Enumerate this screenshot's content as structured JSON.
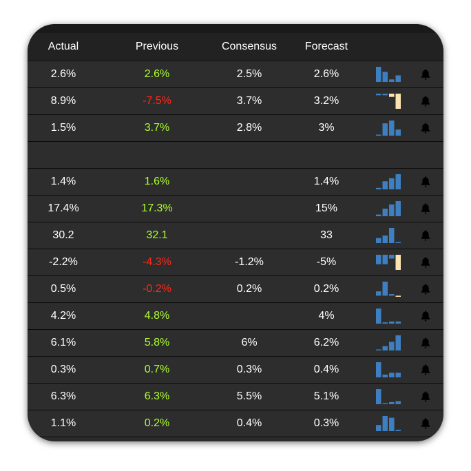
{
  "colors": {
    "up": "#adff2f",
    "down": "#ff2a1a",
    "bar": "#3d7fc1",
    "forecast_bar": "#fbe3b2"
  },
  "header": {
    "actual": "Actual",
    "previous": "Previous",
    "consensus": "Consensus",
    "forecast": "Forecast"
  },
  "rows": [
    {
      "actual": "2.6%",
      "previous": "2.6%",
      "prev_trend": "up",
      "consensus": "2.5%",
      "forecast": "2.6%",
      "spark": [
        [
          3,
          "b"
        ],
        [
          2,
          "b"
        ],
        [
          0.5,
          "b"
        ],
        [
          1.3,
          "b"
        ]
      ]
    },
    {
      "actual": "8.9%",
      "previous": "-7.5%",
      "prev_trend": "down",
      "consensus": "3.7%",
      "forecast": "3.2%",
      "spark": [
        [
          -0.3,
          "b"
        ],
        [
          -0.3,
          "b"
        ],
        [
          -0.6,
          "f"
        ],
        [
          -2.8,
          "f"
        ]
      ]
    },
    {
      "actual": "1.5%",
      "previous": "3.7%",
      "prev_trend": "up",
      "consensus": "2.8%",
      "forecast": "3%",
      "spark": [
        [
          0.2,
          "b"
        ],
        [
          2.6,
          "b"
        ],
        [
          3.2,
          "b"
        ],
        [
          1.3,
          "b"
        ]
      ]
    },
    {
      "empty": true
    },
    {
      "actual": "1.4%",
      "previous": "1.6%",
      "prev_trend": "up",
      "consensus": "",
      "forecast": "1.4%",
      "spark": [
        [
          0.3,
          "b"
        ],
        [
          1.6,
          "b"
        ],
        [
          2.2,
          "b"
        ],
        [
          3,
          "b"
        ]
      ]
    },
    {
      "actual": "17.4%",
      "previous": "17.3%",
      "prev_trend": "up",
      "consensus": "",
      "forecast": "15%",
      "spark": [
        [
          0.4,
          "b"
        ],
        [
          1.8,
          "b"
        ],
        [
          2.8,
          "b"
        ],
        [
          3.6,
          "b"
        ]
      ]
    },
    {
      "actual": "30.2",
      "previous": "32.1",
      "prev_trend": "up",
      "consensus": "",
      "forecast": "33",
      "spark": [
        [
          1,
          "b"
        ],
        [
          1.5,
          "b"
        ],
        [
          3,
          "b"
        ],
        [
          0.2,
          "b"
        ]
      ]
    },
    {
      "actual": "-2.2%",
      "previous": "-4.3%",
      "prev_trend": "down",
      "consensus": "-1.2%",
      "forecast": "-5%",
      "spark": [
        [
          -1,
          "b"
        ],
        [
          -1,
          "b"
        ],
        [
          -0.4,
          "b"
        ],
        [
          -1.6,
          "f"
        ]
      ]
    },
    {
      "actual": "0.5%",
      "previous": "-0.2%",
      "prev_trend": "down",
      "consensus": "0.2%",
      "forecast": "0.2%",
      "spark": [
        [
          0.8,
          "b"
        ],
        [
          2.6,
          "b"
        ],
        [
          0.3,
          "b"
        ],
        [
          -0.2,
          "f"
        ]
      ]
    },
    {
      "actual": "4.2%",
      "previous": "4.8%",
      "prev_trend": "up",
      "consensus": "",
      "forecast": "4%",
      "spark": [
        [
          3.5,
          "b"
        ],
        [
          0.3,
          "b"
        ],
        [
          0.5,
          "b"
        ],
        [
          0.5,
          "b"
        ]
      ]
    },
    {
      "actual": "6.1%",
      "previous": "5.8%",
      "prev_trend": "up",
      "consensus": "6%",
      "forecast": "6.2%",
      "spark": [
        [
          0.2,
          "b"
        ],
        [
          1,
          "b"
        ],
        [
          2,
          "b"
        ],
        [
          3.5,
          "b"
        ]
      ]
    },
    {
      "actual": "0.3%",
      "previous": "0.7%",
      "prev_trend": "up",
      "consensus": "0.3%",
      "forecast": "0.4%",
      "spark": [
        [
          3.3,
          "b"
        ],
        [
          0.6,
          "b"
        ],
        [
          1,
          "b"
        ],
        [
          1,
          "b"
        ]
      ]
    },
    {
      "actual": "6.3%",
      "previous": "6.3%",
      "prev_trend": "up",
      "consensus": "5.5%",
      "forecast": "5.1%",
      "spark": [
        [
          3.5,
          "b"
        ],
        [
          0.2,
          "b"
        ],
        [
          0.5,
          "b"
        ],
        [
          0.7,
          "b"
        ]
      ]
    },
    {
      "actual": "1.1%",
      "previous": "0.2%",
      "prev_trend": "up",
      "consensus": "0.4%",
      "forecast": "0.3%",
      "spark": [
        [
          1,
          "b"
        ],
        [
          2.5,
          "b"
        ],
        [
          2.2,
          "b"
        ],
        [
          0.2,
          "b"
        ]
      ]
    }
  ]
}
